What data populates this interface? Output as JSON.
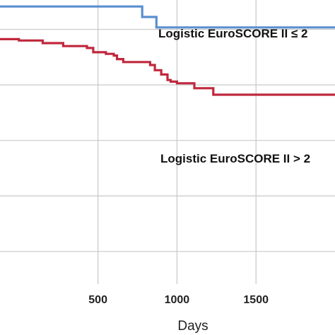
{
  "chart_data": {
    "type": "line",
    "step": true,
    "xlabel": "Days",
    "ylabel": "",
    "title": "",
    "xlim": [
      -120,
      2000
    ],
    "ylim": [
      0.15,
      1.02
    ],
    "x_ticks": [
      500,
      1000,
      1500
    ],
    "y_gridlines": [
      0.93,
      0.76,
      0.59,
      0.42,
      0.25
    ],
    "grid": true,
    "series": [
      {
        "name": "Logistic EuroSCORE II ≤ 2",
        "color": "#5b8fd0",
        "x": [
          -120,
          780,
          870,
          2000
        ],
        "y": [
          1.0,
          0.968,
          0.936,
          0.936
        ]
      },
      {
        "name": "Logistic EuroSCORE II > 2",
        "color": "#c0283d",
        "x": [
          -120,
          0,
          150,
          280,
          430,
          470,
          550,
          600,
          620,
          660,
          780,
          830,
          860,
          900,
          940,
          960,
          1000,
          1110,
          1230,
          2000
        ],
        "y": [
          0.9,
          0.896,
          0.888,
          0.879,
          0.873,
          0.86,
          0.855,
          0.85,
          0.839,
          0.83,
          0.83,
          0.821,
          0.805,
          0.792,
          0.775,
          0.77,
          0.765,
          0.75,
          0.73,
          0.73
        ]
      }
    ]
  },
  "colors": {
    "background": "#ffffff",
    "grid": "#c8c8c8"
  }
}
